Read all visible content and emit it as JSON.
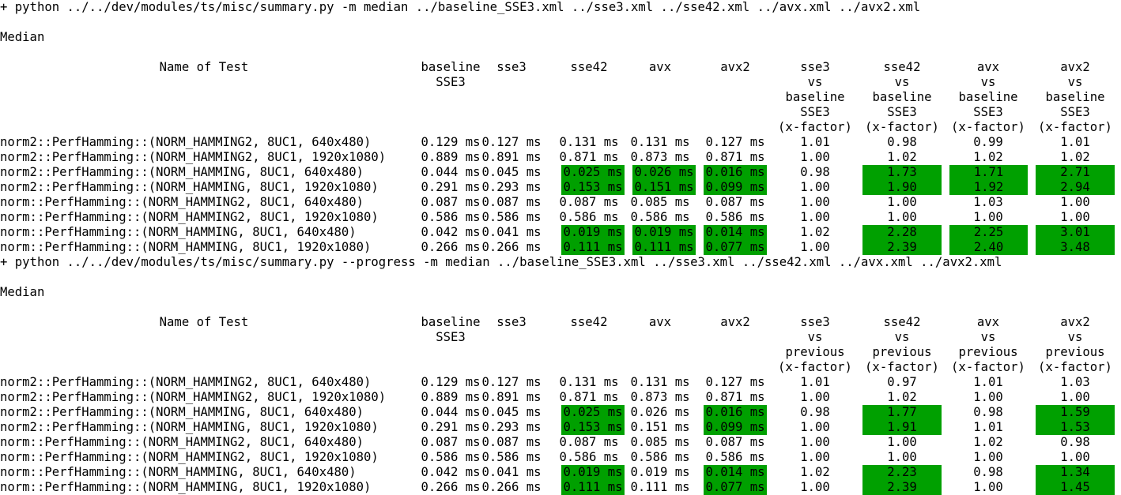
{
  "theme": {
    "highlight_color": "#00a000",
    "text_color": "#000000",
    "background": "#ffffff"
  },
  "blocks": [
    {
      "command": "+ python ../../dev/modules/ts/misc/summary.py -m median ../baseline_SSE3.xml ../sse3.xml ../sse42.xml ../avx.xml ../avx2.xml",
      "label": "Median",
      "headers": [
        [
          "Name of Test"
        ],
        [
          "baseline",
          "SSE3"
        ],
        [
          "sse3"
        ],
        [
          "sse42"
        ],
        [
          "avx"
        ],
        [
          "avx2"
        ],
        [
          "sse3",
          "vs",
          "baseline",
          "SSE3",
          "(x-factor)"
        ],
        [
          "sse42",
          "vs",
          "baseline",
          "SSE3",
          "(x-factor)"
        ],
        [
          "avx",
          "vs",
          "baseline",
          "SSE3",
          "(x-factor)"
        ],
        [
          "avx2",
          "vs",
          "baseline",
          "SSE3",
          "(x-factor)"
        ]
      ],
      "rows": [
        {
          "name": "norm2::PerfHamming::(NORM_HAMMING2, 8UC1, 640x480)",
          "cells": [
            "0.129 ms",
            "0.127 ms",
            "0.131 ms",
            "0.131 ms",
            "0.127 ms",
            "1.01",
            "0.98",
            "0.99",
            "1.01"
          ],
          "highlight": []
        },
        {
          "name": "norm2::PerfHamming::(NORM_HAMMING2, 8UC1, 1920x1080)",
          "cells": [
            "0.889 ms",
            "0.891 ms",
            "0.871 ms",
            "0.873 ms",
            "0.871 ms",
            "1.00",
            "1.02",
            "1.02",
            "1.02"
          ],
          "highlight": []
        },
        {
          "name": "norm2::PerfHamming::(NORM_HAMMING, 8UC1, 640x480)",
          "cells": [
            "0.044 ms",
            "0.045 ms",
            "0.025 ms",
            "0.026 ms",
            "0.016 ms",
            "0.98",
            "1.73",
            "1.71",
            "2.71"
          ],
          "highlight": [
            3,
            4,
            5,
            7,
            8,
            9
          ]
        },
        {
          "name": "norm2::PerfHamming::(NORM_HAMMING, 8UC1, 1920x1080)",
          "cells": [
            "0.291 ms",
            "0.293 ms",
            "0.153 ms",
            "0.151 ms",
            "0.099 ms",
            "1.00",
            "1.90",
            "1.92",
            "2.94"
          ],
          "highlight": [
            3,
            4,
            5,
            7,
            8,
            9
          ]
        },
        {
          "name": "norm::PerfHamming::(NORM_HAMMING2, 8UC1, 640x480)",
          "cells": [
            "0.087 ms",
            "0.087 ms",
            "0.087 ms",
            "0.085 ms",
            "0.087 ms",
            "1.00",
            "1.00",
            "1.03",
            "1.00"
          ],
          "highlight": []
        },
        {
          "name": "norm::PerfHamming::(NORM_HAMMING2, 8UC1, 1920x1080)",
          "cells": [
            "0.586 ms",
            "0.586 ms",
            "0.586 ms",
            "0.586 ms",
            "0.586 ms",
            "1.00",
            "1.00",
            "1.00",
            "1.00"
          ],
          "highlight": []
        },
        {
          "name": "norm::PerfHamming::(NORM_HAMMING, 8UC1, 640x480)",
          "cells": [
            "0.042 ms",
            "0.041 ms",
            "0.019 ms",
            "0.019 ms",
            "0.014 ms",
            "1.02",
            "2.28",
            "2.25",
            "3.01"
          ],
          "highlight": [
            3,
            4,
            5,
            7,
            8,
            9
          ]
        },
        {
          "name": "norm::PerfHamming::(NORM_HAMMING, 8UC1, 1920x1080)",
          "cells": [
            "0.266 ms",
            "0.266 ms",
            "0.111 ms",
            "0.111 ms",
            "0.077 ms",
            "1.00",
            "2.39",
            "2.40",
            "3.48"
          ],
          "highlight": [
            3,
            4,
            5,
            7,
            8,
            9
          ]
        }
      ]
    },
    {
      "command": "+ python ../../dev/modules/ts/misc/summary.py --progress -m median ../baseline_SSE3.xml ../sse3.xml ../sse42.xml ../avx.xml ../avx2.xml",
      "label": "Median",
      "headers": [
        [
          "Name of Test"
        ],
        [
          "baseline",
          "SSE3"
        ],
        [
          "sse3"
        ],
        [
          "sse42"
        ],
        [
          "avx"
        ],
        [
          "avx2"
        ],
        [
          "sse3",
          "vs",
          "previous",
          "(x-factor)"
        ],
        [
          "sse42",
          "vs",
          "previous",
          "(x-factor)"
        ],
        [
          "avx",
          "vs",
          "previous",
          "(x-factor)"
        ],
        [
          "avx2",
          "vs",
          "previous",
          "(x-factor)"
        ]
      ],
      "rows": [
        {
          "name": "norm2::PerfHamming::(NORM_HAMMING2, 8UC1, 640x480)",
          "cells": [
            "0.129 ms",
            "0.127 ms",
            "0.131 ms",
            "0.131 ms",
            "0.127 ms",
            "1.01",
            "0.97",
            "1.01",
            "1.03"
          ],
          "highlight": []
        },
        {
          "name": "norm2::PerfHamming::(NORM_HAMMING2, 8UC1, 1920x1080)",
          "cells": [
            "0.889 ms",
            "0.891 ms",
            "0.871 ms",
            "0.873 ms",
            "0.871 ms",
            "1.00",
            "1.02",
            "1.00",
            "1.00"
          ],
          "highlight": []
        },
        {
          "name": "norm2::PerfHamming::(NORM_HAMMING, 8UC1, 640x480)",
          "cells": [
            "0.044 ms",
            "0.045 ms",
            "0.025 ms",
            "0.026 ms",
            "0.016 ms",
            "0.98",
            "1.77",
            "0.98",
            "1.59"
          ],
          "highlight": [
            3,
            5,
            7,
            9
          ]
        },
        {
          "name": "norm2::PerfHamming::(NORM_HAMMING, 8UC1, 1920x1080)",
          "cells": [
            "0.291 ms",
            "0.293 ms",
            "0.153 ms",
            "0.151 ms",
            "0.099 ms",
            "1.00",
            "1.91",
            "1.01",
            "1.53"
          ],
          "highlight": [
            3,
            5,
            7,
            9
          ]
        },
        {
          "name": "norm::PerfHamming::(NORM_HAMMING2, 8UC1, 640x480)",
          "cells": [
            "0.087 ms",
            "0.087 ms",
            "0.087 ms",
            "0.085 ms",
            "0.087 ms",
            "1.00",
            "1.00",
            "1.02",
            "0.98"
          ],
          "highlight": []
        },
        {
          "name": "norm::PerfHamming::(NORM_HAMMING2, 8UC1, 1920x1080)",
          "cells": [
            "0.586 ms",
            "0.586 ms",
            "0.586 ms",
            "0.586 ms",
            "0.586 ms",
            "1.00",
            "1.00",
            "1.00",
            "1.00"
          ],
          "highlight": []
        },
        {
          "name": "norm::PerfHamming::(NORM_HAMMING, 8UC1, 640x480)",
          "cells": [
            "0.042 ms",
            "0.041 ms",
            "0.019 ms",
            "0.019 ms",
            "0.014 ms",
            "1.02",
            "2.23",
            "0.98",
            "1.34"
          ],
          "highlight": [
            3,
            5,
            7,
            9
          ]
        },
        {
          "name": "norm::PerfHamming::(NORM_HAMMING, 8UC1, 1920x1080)",
          "cells": [
            "0.266 ms",
            "0.266 ms",
            "0.111 ms",
            "0.111 ms",
            "0.077 ms",
            "1.00",
            "2.39",
            "1.00",
            "1.45"
          ],
          "highlight": [
            3,
            5,
            7,
            9
          ]
        }
      ]
    }
  ]
}
